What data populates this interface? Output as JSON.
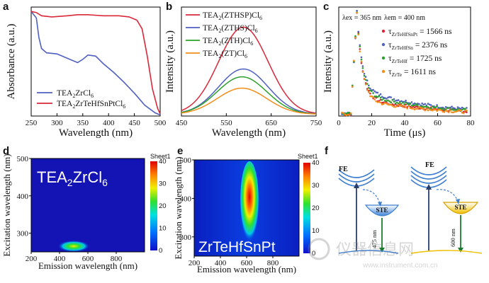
{
  "panels": {
    "a": "a",
    "b": "b",
    "c": "c",
    "d": "d",
    "e": "e",
    "f": "f"
  },
  "chart_data": [
    {
      "id": "a",
      "type": "line",
      "title": "",
      "xlabel": "Wavelength (nm)",
      "ylabel": "Absorbance (a.u.)",
      "xlim": [
        250,
        500
      ],
      "ylim": [
        0,
        1
      ],
      "xticks": [
        "250",
        "300",
        "350",
        "400",
        "450",
        "500"
      ],
      "legend": "bottom-left",
      "series": [
        {
          "name": "TEA",
          "name_sub": "2",
          "name_rest": "ZrCl",
          "name_sub2": "6",
          "color": "#5060c0",
          "x": [
            250,
            260,
            265,
            270,
            280,
            300,
            320,
            340,
            350,
            360,
            375,
            390,
            410,
            430,
            450,
            470,
            490,
            500
          ],
          "y": [
            0.96,
            0.9,
            0.72,
            0.62,
            0.58,
            0.57,
            0.53,
            0.49,
            0.52,
            0.56,
            0.55,
            0.48,
            0.4,
            0.31,
            0.21,
            0.1,
            0.03,
            0.01
          ]
        },
        {
          "name": "TEA",
          "name_sub": "2",
          "name_rest": "ZrTeHfSnPtCl",
          "name_sub2": "6",
          "color": "#d8283a",
          "x": [
            250,
            260,
            270,
            290,
            320,
            340,
            360,
            390,
            420,
            440,
            455,
            465,
            475,
            485,
            495,
            500
          ],
          "y": [
            0.96,
            0.95,
            0.92,
            0.91,
            0.92,
            0.93,
            0.93,
            0.92,
            0.92,
            0.91,
            0.88,
            0.8,
            0.55,
            0.25,
            0.07,
            0.02
          ]
        }
      ]
    },
    {
      "id": "b",
      "type": "line",
      "xlabel": "Wavelength (nm)",
      "ylabel": "Intensity (a.u.)",
      "xlim": [
        450,
        750
      ],
      "ylim": [
        0,
        1.25
      ],
      "xticks": [
        "450",
        "550",
        "650",
        "750"
      ],
      "legend": "top-left",
      "series": [
        {
          "name": "TEA",
          "name_sub": "2",
          "name_rest": "(ZTHSP)Cl",
          "name_sub2": "6",
          "color": "#d8283a",
          "peak": 588,
          "height": 1.0,
          "width": 55
        },
        {
          "name": "TEA",
          "name_sub": "2",
          "name_rest": "(ZTHS)Cl",
          "name_sub2": "6",
          "color": "#5060c0",
          "peak": 588,
          "height": 0.52,
          "width": 55
        },
        {
          "name": "TEA",
          "name_sub": "2",
          "name_rest": "(ZTH)Cl",
          "name_sub2": "6",
          "color": "#2ca02c",
          "peak": 585,
          "height": 0.43,
          "width": 55
        },
        {
          "name": "TEA",
          "name_sub": "2",
          "name_rest": "(ZT)Cl",
          "name_sub2": "6",
          "color": "#f28e1c",
          "peak": 585,
          "height": 0.3,
          "width": 55
        }
      ]
    },
    {
      "id": "c",
      "type": "scatter",
      "xlabel": "Time (μs)",
      "ylabel": "Intensity (a.u.)",
      "xlim": [
        0,
        80
      ],
      "ylim": [
        0,
        1.05
      ],
      "xticks": [
        "0",
        "20",
        "40",
        "60",
        "80"
      ],
      "annotation_ex": "λex = 365 nm",
      "annotation_em": "λem = 400 nm",
      "legend": "top-right",
      "series": [
        {
          "name": "τ",
          "sub": "ZrTeHfSnPt",
          "value": "= 1566 ns",
          "color": "#d8283a",
          "tail": 0.18
        },
        {
          "name": "τ",
          "sub": "ZrTeHfSn",
          "value": "= 2376 ns",
          "color": "#5060c0",
          "tail": 0.26
        },
        {
          "name": "τ",
          "sub": "ZrTeHf",
          "value": "= 1725 ns",
          "color": "#2ca02c",
          "tail": 0.22
        },
        {
          "name": "τ",
          "sub": "ZrTe",
          "value": "= 1611 ns",
          "color": "#f28e1c",
          "tail": 0.16
        }
      ]
    },
    {
      "id": "d",
      "type": "heatmap",
      "label": "TEA",
      "label_sub": "2",
      "label_rest": "ZrCl",
      "label_sub2": "6",
      "xlabel": "Emission wavelength (nm)",
      "ylabel": "Excitation wavelength (nm)",
      "xlim": [
        200,
        1000
      ],
      "ylim": [
        250,
        500
      ],
      "xticks": [
        "200",
        "400",
        "600",
        "800"
      ],
      "yticks": [
        "300",
        "400",
        "500"
      ],
      "colorbar_title": "Sheet1",
      "colorbar_ticks": [
        "0",
        "10",
        "20",
        "30",
        "40"
      ],
      "hotspot": {
        "x": 470,
        "y": 265,
        "value": 30
      }
    },
    {
      "id": "e",
      "type": "heatmap",
      "label": "ZrTeHfSnPt",
      "xlabel": "Emission wavelength (nm)",
      "ylabel": "Excitation wavelength (nm)",
      "xlim": [
        200,
        1000
      ],
      "ylim": [
        250,
        500
      ],
      "xticks": [
        "200",
        "400",
        "600",
        "800"
      ],
      "yticks": [
        "300",
        "400",
        "500"
      ],
      "colorbar_title": "Sheet1",
      "colorbar_ticks": [
        "0",
        "10",
        "20",
        "30",
        "40"
      ],
      "hotspot": {
        "x": 590,
        "y": 410,
        "value": 40
      }
    }
  ],
  "diagram_f": {
    "fe1": "FE",
    "ste1": "STE",
    "nm1": "475 nm",
    "fe2": "FE",
    "ste2": "STE",
    "nm2": "600 nm"
  },
  "watermark": {
    "text": "仪器信息网",
    "url": "www.instrument.com.cn"
  }
}
